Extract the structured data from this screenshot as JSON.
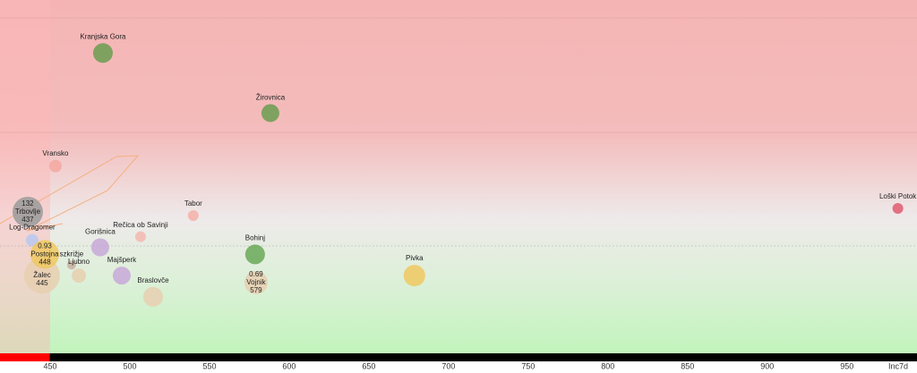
{
  "chart_data": {
    "type": "bubble",
    "x_label": "Inc7d",
    "xlim": [
      418.5,
      994
    ],
    "xticks": [
      450,
      500,
      550,
      600,
      650,
      700,
      750,
      800,
      850,
      900,
      950
    ],
    "ylim": [
      0,
      100
    ],
    "points": [
      {
        "name": "Kranjska Gora",
        "x": 483.1,
        "y": 85,
        "size": 11,
        "color": "#6a9e50"
      },
      {
        "name": "Žirovnica",
        "x": 588.2,
        "y": 68,
        "size": 10,
        "color": "#6a9e50"
      },
      {
        "name": "Vransko",
        "x": 453.3,
        "y": 53,
        "size": 7,
        "color": "#f4a8a0"
      },
      {
        "name": "Trbovlje",
        "x": 435.9,
        "y": 40,
        "size": 17,
        "color": "#9a9a9a",
        "top": 132,
        "bottom": 437
      },
      {
        "name": "Tabor",
        "x": 539.8,
        "y": 39,
        "size": 6,
        "color": "#f4b0a8"
      },
      {
        "name": "Loški Potok",
        "x": 982,
        "y": 41,
        "size": 6,
        "color": "#e05a70"
      },
      {
        "name": "Log-Dragomer",
        "x": 438.7,
        "y": 32,
        "size": 7,
        "color": "#b8c8f0"
      },
      {
        "name": "Gorišnica",
        "x": 481.4,
        "y": 30,
        "size": 10,
        "color": "#c8a8d8"
      },
      {
        "name": "Rečica ob Savinji",
        "x": 506.7,
        "y": 33,
        "size": 6,
        "color": "#f4b8b0"
      },
      {
        "name": "Bohinj",
        "x": 578.6,
        "y": 28,
        "size": 11,
        "color": "#6aa858"
      },
      {
        "name": "szkrižje",
        "x": 463.4,
        "y": 25,
        "size": 5,
        "color": "#c8b0a0"
      },
      {
        "name": "Žalec",
        "x": 444.9,
        "y": 22,
        "size": 20,
        "color": "#e8cfb0",
        "bottom": 445
      },
      {
        "name": "Postojna",
        "x": 446.6,
        "y": 28,
        "size": 16,
        "color": "#f0c860",
        "top": 0.93,
        "bottom": 448
      },
      {
        "name": "Ljubno",
        "x": 468,
        "y": 22,
        "size": 8,
        "color": "#e8cfb0"
      },
      {
        "name": "Majšperk",
        "x": 494.9,
        "y": 22,
        "size": 10,
        "color": "#c8a8d8"
      },
      {
        "name": "Vojnik",
        "x": 579.2,
        "y": 20,
        "size": 13,
        "color": "#e8cfb0",
        "top": 0.69,
        "bottom": 579
      },
      {
        "name": "Pivka",
        "x": 678.6,
        "y": 22,
        "size": 12,
        "color": "#f0c860"
      },
      {
        "name": "Braslovče",
        "x": 514.6,
        "y": 16,
        "size": 11,
        "color": "#e8cfb0"
      }
    ]
  }
}
